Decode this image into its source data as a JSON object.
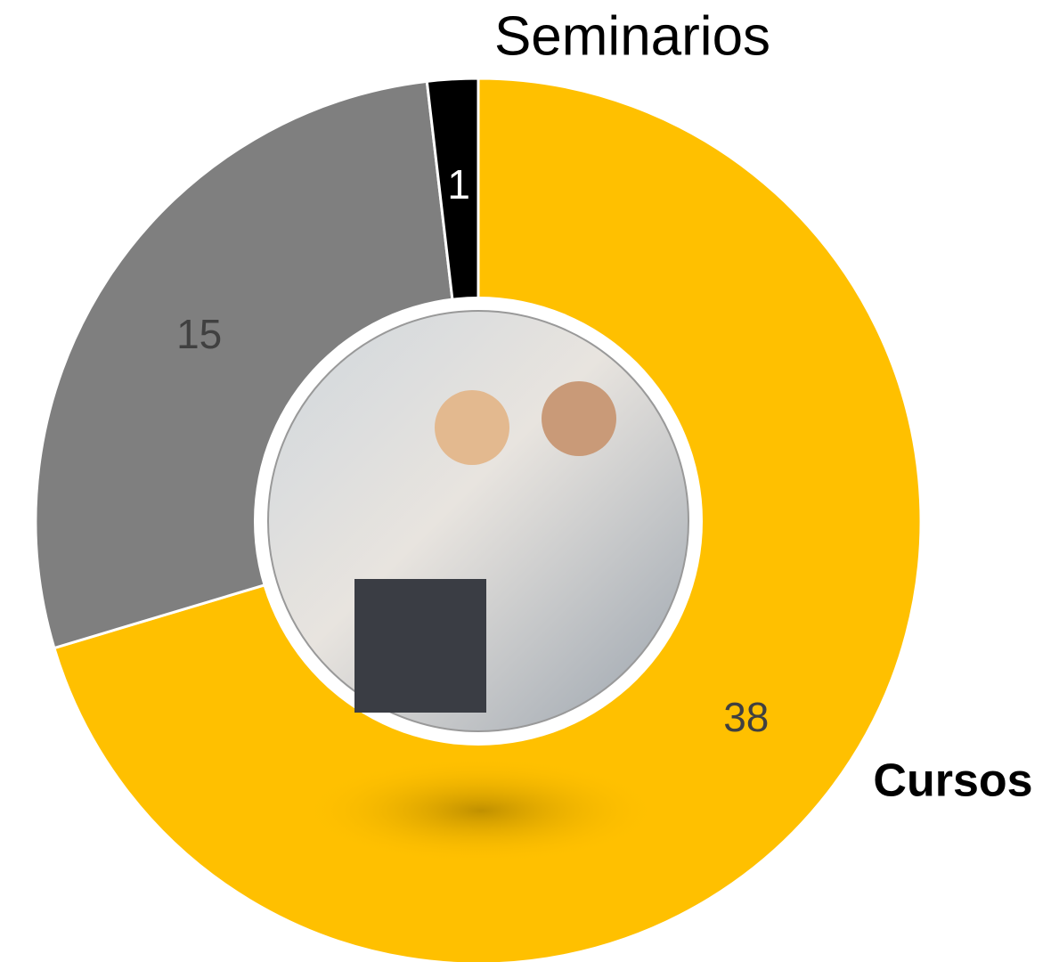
{
  "chart_data": {
    "type": "donut",
    "categories": [
      "Cursos",
      null,
      "Seminarios"
    ],
    "series": [
      {
        "values": [
          38,
          15,
          1
        ],
        "colors": [
          "#FFC000",
          "#7F7F7F",
          "#000000"
        ]
      }
    ]
  }
}
